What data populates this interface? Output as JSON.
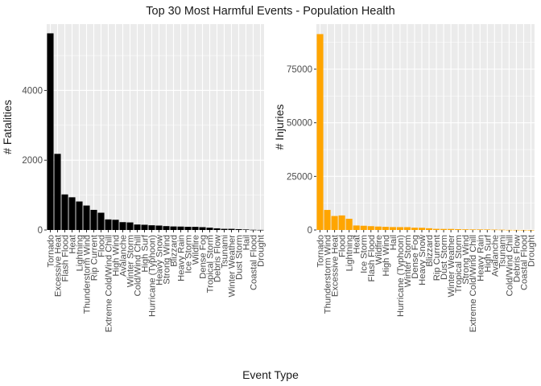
{
  "title": "Top 30 Most Harmful Events - Population Health",
  "xlabel": "Event Type",
  "colors": {
    "fatalities_bar": "#000000",
    "injuries_bar": "#FFA500",
    "panel_bg": "#EBEBEB",
    "grid": "#FFFFFF",
    "text": "#4D4D4D"
  },
  "chart_data": [
    {
      "type": "bar",
      "ylabel": "# Fatalities",
      "color": "#000000",
      "ylim": [
        0,
        5900
      ],
      "yticks": [
        0,
        2000,
        4000
      ],
      "grid": true,
      "categories": [
        "Tornado",
        "Excessive Heat",
        "Flash Flood",
        "Heat",
        "Lightning",
        "Thunderstorm Wind",
        "Rip Current",
        "Flood",
        "Extreme Cold/Wind Chill",
        "High Wind",
        "Avalanche",
        "Winter Storm",
        "Cold/Wind Chill",
        "High Surf",
        "Hurricane (Typhoon)",
        "Heavy Snow",
        "Strong Wind",
        "Blizzard",
        "Heavy Rain",
        "Ice Storm",
        "Wildfire",
        "Dense Fog",
        "Tropical Storm",
        "Debris Flow",
        "Tsunami",
        "Winter Weather",
        "Dust Storm",
        "Hail",
        "Coastal Flood",
        "Drought"
      ],
      "values": [
        5636,
        2182,
        1019,
        937,
        817,
        701,
        577,
        495,
        303,
        293,
        225,
        217,
        157,
        150,
        135,
        127,
        111,
        101,
        98,
        91,
        90,
        81,
        66,
        48,
        33,
        33,
        24,
        15,
        6,
        3
      ]
    },
    {
      "type": "bar",
      "ylabel": "# Injuries",
      "color": "#FFA500",
      "ylim": [
        0,
        96000
      ],
      "yticks": [
        0,
        25000,
        50000,
        75000
      ],
      "grid": true,
      "categories": [
        "Tornado",
        "Thunderstorm Wind",
        "Excessive Heat",
        "Flood",
        "Lightning",
        "Heat",
        "Ice Storm",
        "Flash Flood",
        "Wildfire",
        "High Wind",
        "Hail",
        "Hurricane (Typhoon)",
        "Winter Storm",
        "Dense Fog",
        "Heavy Snow",
        "Blizzard",
        "Rip Current",
        "Dust Storm",
        "Winter Weather",
        "Tropical Storm",
        "Strong Wind",
        "Extreme Cold/Wind Chill",
        "Heavy Rain",
        "High Surf",
        "Avalanche",
        "Tsunami",
        "Cold/Wind Chill",
        "Debris Flow",
        "Coastal Flood",
        "Drought"
      ],
      "values": [
        91346,
        9353,
        6525,
        6789,
        5230,
        2100,
        1975,
        1785,
        1606,
        1469,
        1361,
        1333,
        1321,
        1077,
        1030,
        805,
        529,
        483,
        483,
        383,
        301,
        260,
        251,
        238,
        170,
        129,
        48,
        36,
        15,
        4
      ]
    }
  ]
}
